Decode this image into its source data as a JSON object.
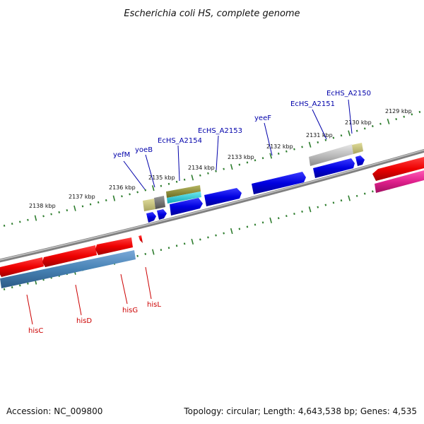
{
  "title": "Escherichia coli HS, complete genome",
  "footer": {
    "accession": "Accession: NC_009800",
    "summary": "Topology: circular; Length: 4,643,538 bp; Genes: 4,535"
  },
  "colors": {
    "backbone": "#8a8a8a",
    "tick": "#2e7d2e",
    "blue_label": "#0000aa",
    "red_label": "#cc0000"
  },
  "outer_ruler_labels": [
    "2129 kbp",
    "2130 kbp",
    "2131 kbp",
    "2132 kbp",
    "2133 kbp",
    "2134 kbp",
    "2135 kbp",
    "2136 kbp",
    "2137 kbp",
    "2138 kbp"
  ],
  "outer_labels": [
    "EcHS_A2150",
    "EcHS_A2151",
    "yeeF",
    "EcHS_A2153",
    "EcHS_A2154",
    "yoeB",
    "yefM"
  ],
  "inner_labels": [
    "hisC",
    "hisD",
    "hisG",
    "hisL"
  ]
}
